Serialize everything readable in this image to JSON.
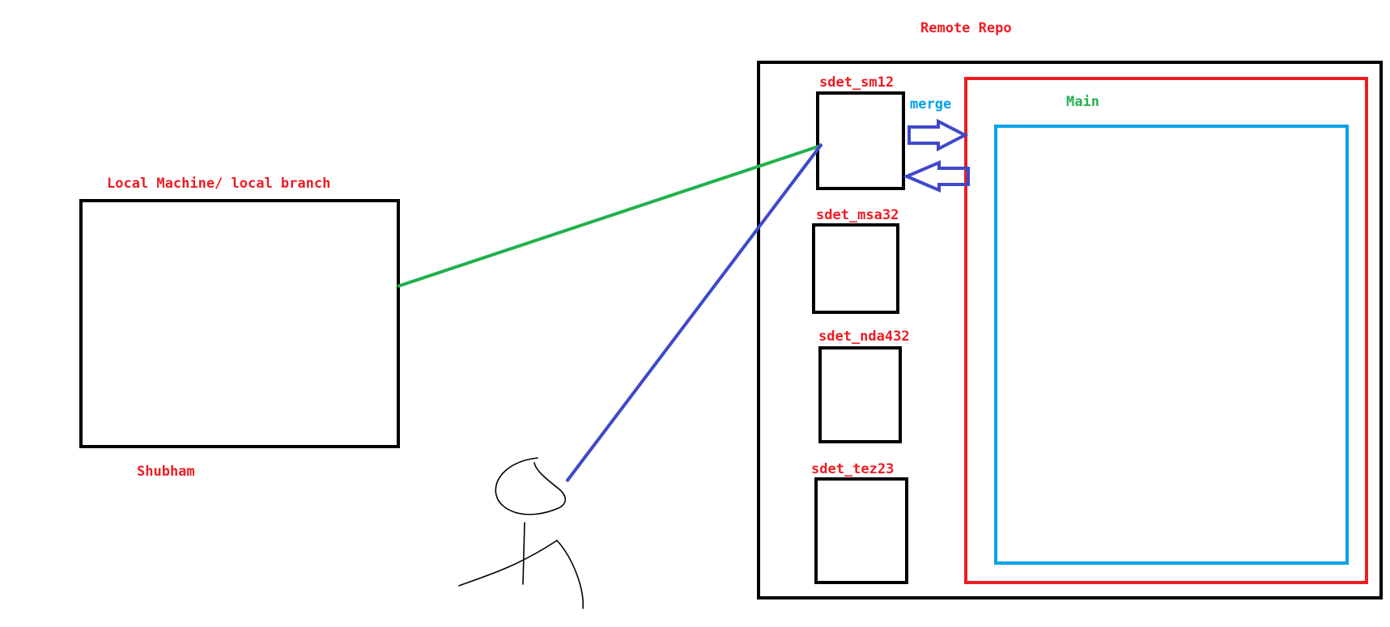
{
  "diagram": {
    "local": {
      "title": "Local Machine/ local branch",
      "owner": "Shubham"
    },
    "remote": {
      "title": "Remote Repo",
      "branches": [
        "sdet_sm12",
        "sdet_msa32",
        "sdet_nda432",
        "sdet_tez23"
      ],
      "merge_label": "merge",
      "main_label": "Main"
    }
  },
  "colors": {
    "label_red": "#ed1c24",
    "merge_blue": "#00a2e8",
    "main_green": "#22b14c",
    "box_black": "#000000",
    "repo_red": "#ed1c24",
    "main_blue": "#00a2e8",
    "link_green": "#22b14c",
    "link_blue": "#3f48cc",
    "arrow_blue": "#3f48cc"
  },
  "icons": {
    "person": "stick-figure-person-icon",
    "merge_in": "arrow-right-icon",
    "merge_out": "arrow-left-icon"
  }
}
